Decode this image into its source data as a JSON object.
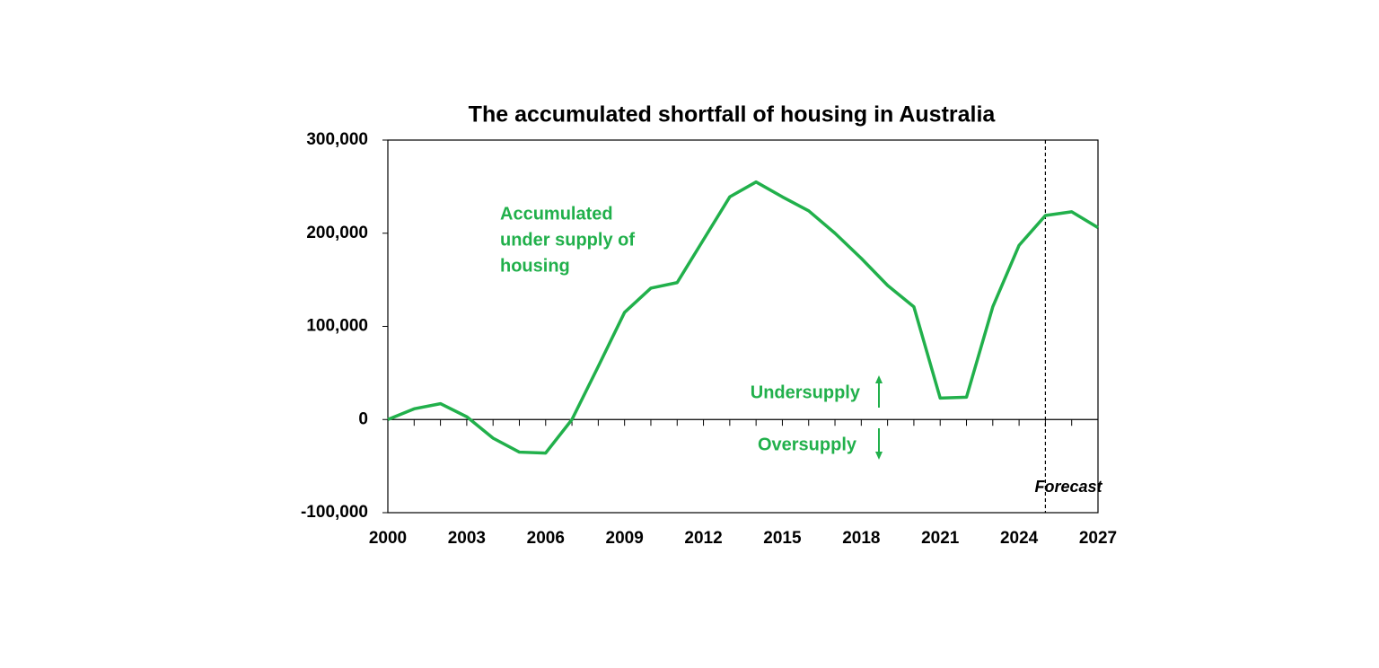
{
  "chart_data": {
    "type": "line",
    "title": "The accumulated shortfall of housing in Australia",
    "x": [
      2000,
      2001,
      2002,
      2003,
      2004,
      2005,
      2006,
      2007,
      2008,
      2009,
      2010,
      2011,
      2012,
      2013,
      2014,
      2015,
      2016,
      2017,
      2018,
      2019,
      2020,
      2021,
      2022,
      2023,
      2024,
      2025,
      2026,
      2027
    ],
    "series": [
      {
        "name": "Accumulated under supply of housing",
        "color": "#21b04b",
        "values": [
          0,
          11500,
          17000,
          3000,
          -20000,
          -35000,
          -36000,
          0,
          57000,
          115000,
          141000,
          147000,
          193000,
          239000,
          255000,
          239000,
          224000,
          200000,
          173000,
          144000,
          121000,
          23000,
          24000,
          121000,
          187000,
          219000,
          223000,
          206000
        ]
      }
    ],
    "annotation_lines": [
      "Accumulated",
      "under supply of",
      "housing"
    ],
    "undersupply_label": "Undersupply",
    "oversupply_label": "Oversupply",
    "forecast_label": "Forecast",
    "forecast_start": 2025,
    "xlim": [
      2000,
      2027
    ],
    "xticks": [
      2000,
      2003,
      2006,
      2009,
      2012,
      2015,
      2018,
      2021,
      2024,
      2027
    ],
    "ylim": [
      -100000,
      300000
    ],
    "yticks": [
      {
        "value": -100000,
        "label": "-100,000"
      },
      0,
      {
        "value": 100000,
        "label": "100,000"
      },
      {
        "value": 200000,
        "label": "200,000"
      },
      {
        "value": 300000,
        "label": "300,000"
      }
    ]
  }
}
